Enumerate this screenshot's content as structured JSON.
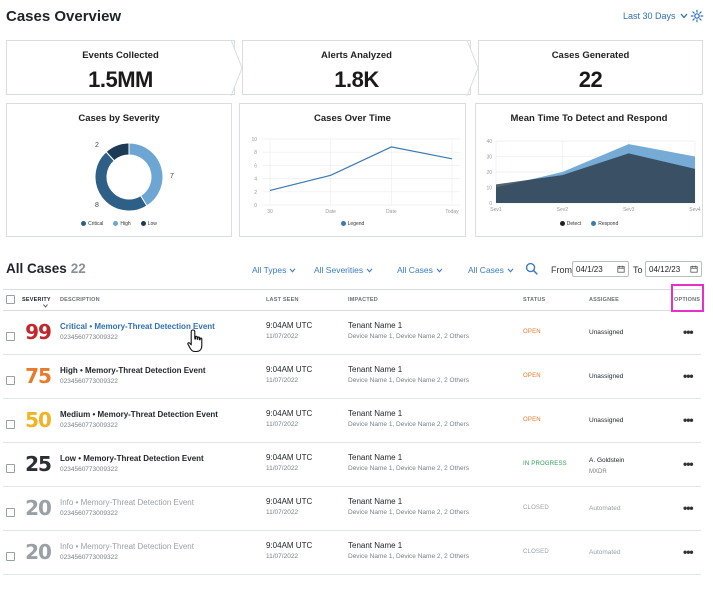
{
  "header": {
    "title": "Cases Overview",
    "range_label": "Last 30 Days"
  },
  "metrics": [
    {
      "label": "Events Collected",
      "value": "1.5MM"
    },
    {
      "label": "Alerts Analyzed",
      "value": "1.8K"
    },
    {
      "label": "Cases Generated",
      "value": "22"
    }
  ],
  "charts": {
    "severity": {
      "title": "Cases by Severity",
      "labels": {
        "low": "2",
        "high": "7",
        "critical": "8"
      },
      "legend": [
        "Critical",
        "High",
        "Low"
      ],
      "colors": {
        "critical": "#2e5f86",
        "high": "#6ea6d3",
        "low": "#1d3b56"
      }
    },
    "over_time": {
      "title": "Cases Over Time",
      "y_ticks": [
        "0",
        "2",
        "4",
        "6",
        "8",
        "10"
      ],
      "x_ticks": [
        "30",
        "Date",
        "Date",
        "Today"
      ],
      "legend": "Legend"
    },
    "mttd": {
      "title": "Mean Time To Detect and Respond",
      "y_ticks": [
        "0",
        "10",
        "20",
        "30",
        "40"
      ],
      "x_ticks": [
        "Sev1",
        "Sev2",
        "Sev3",
        "Sev4"
      ],
      "legend": [
        "Detect",
        "Respond"
      ]
    }
  },
  "chart_data": [
    {
      "type": "pie",
      "title": "Cases by Severity",
      "categories": [
        "Critical",
        "High",
        "Low"
      ],
      "values": [
        8,
        7,
        2
      ]
    },
    {
      "type": "line",
      "title": "Cases Over Time",
      "categories": [
        "30",
        "Date",
        "Date",
        "Today"
      ],
      "series": [
        {
          "name": "Legend",
          "values": [
            2.2,
            4.5,
            8.8,
            7.0
          ]
        }
      ],
      "ylim": [
        0,
        10
      ]
    },
    {
      "type": "area",
      "title": "Mean Time To Detect and Respond",
      "categories": [
        "Sev1",
        "Sev2",
        "Sev3",
        "Sev4"
      ],
      "series": [
        {
          "name": "Detect",
          "values": [
            12,
            18,
            32,
            22
          ]
        },
        {
          "name": "Respond",
          "values": [
            10,
            20,
            38,
            30
          ]
        }
      ],
      "ylim": [
        0,
        40
      ]
    }
  ],
  "cases": {
    "title": "All Cases",
    "count": "22",
    "filters": [
      "All Types",
      "All Severities",
      "All Cases",
      "All Cases"
    ],
    "from_label": "From",
    "from_value": "04/1/23",
    "to_label": "To",
    "to_value": "04/12/23",
    "columns": {
      "severity": "SEVERITY",
      "description": "DESCRIPTION",
      "last_seen": "LAST SEEN",
      "impacted": "IMPACTED",
      "status": "STATUS",
      "assignee": "ASSIGNEE",
      "options": "OPTIONS"
    },
    "rows": [
      {
        "sev": "99",
        "sev_color": "#c0282d",
        "title": "Critical • Memory-Threat Detection Event",
        "id": "0234560773009322",
        "time": "9:04AM UTC",
        "date": "11/07/2022",
        "tenant": "Tenant Name 1",
        "devices": "Device Name 1, Device Name 2, 2 Others",
        "status": "OPEN",
        "status_color": "#e8792b",
        "assignee": "Unassigned",
        "assignee_sub": "",
        "more": "•••"
      },
      {
        "sev": "75",
        "sev_color": "#e87a2c",
        "title": "High • Memory-Threat Detection Event",
        "id": "0234560773009322",
        "time": "9:04AM UTC",
        "date": "11/07/2022",
        "tenant": "Tenant Name 1",
        "devices": "Device Name 1, Device Name 2, 2 Others",
        "status": "OPEN",
        "status_color": "#e8792b",
        "assignee": "Unassigned",
        "assignee_sub": "",
        "more": "•••"
      },
      {
        "sev": "50",
        "sev_color": "#f0b323",
        "title": "Medium • Memory-Threat Detection Event",
        "id": "0234560773009322",
        "time": "9:04AM UTC",
        "date": "11/07/2022",
        "tenant": "Tenant Name 1",
        "devices": "Device Name 1, Device Name 2, 2 Others",
        "status": "OPEN",
        "status_color": "#e8792b",
        "assignee": "Unassigned",
        "assignee_sub": "",
        "more": "•••"
      },
      {
        "sev": "25",
        "sev_color": "#2b2f33",
        "title": "Low • Memory-Threat Detection Event",
        "id": "0234560773009322",
        "time": "9:04AM UTC",
        "date": "11/07/2022",
        "tenant": "Tenant Name 1",
        "devices": "Device Name 1, Device Name 2, 2 Others",
        "status": "IN PROGRESS",
        "status_color": "#2e9a57",
        "assignee": "A. Goldstein",
        "assignee_sub": "MXDR",
        "more": "•••"
      },
      {
        "sev": "20",
        "sev_color": "#9aa0a6",
        "title": "Info • Memory-Threat Detection Event",
        "id": "0234560773009322",
        "time": "9:04AM UTC",
        "date": "11/07/2022",
        "tenant": "Tenant Name 1",
        "devices": "Device Name 1, Device Name 2, 2 Others",
        "status": "CLOSED",
        "status_color": "#9aa0a6",
        "assignee": "Automated",
        "assignee_sub": "",
        "more": "•••"
      },
      {
        "sev": "20",
        "sev_color": "#9aa0a6",
        "title": "Info • Memory-Threat Detection Event",
        "id": "0234560773009322",
        "time": "9:04AM UTC",
        "date": "11/07/2022",
        "tenant": "Tenant Name 1",
        "devices": "Device Name 1, Device Name 2, 2 Others",
        "status": "CLOSED",
        "status_color": "#9aa0a6",
        "assignee": "Automated",
        "assignee_sub": "",
        "more": "•••"
      }
    ]
  }
}
